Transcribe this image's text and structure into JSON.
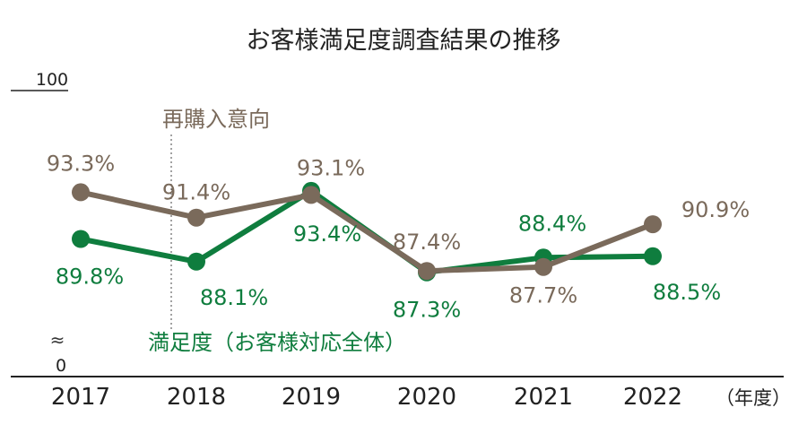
{
  "chart_data": {
    "type": "line",
    "title": "お客様満足度調査結果の推移",
    "y_top_label": "100",
    "y_bottom_label": "0",
    "axis_break_symbol": "≈",
    "ylim": [
      0,
      100
    ],
    "x_unit": "（年度）",
    "categories": [
      "2017",
      "2018",
      "2019",
      "2020",
      "2021",
      "2022"
    ],
    "divider_after_category": "2017",
    "series": [
      {
        "name": "再購入意向",
        "color": "#7a6a5b",
        "values": [
          93.3,
          91.4,
          93.1,
          87.4,
          87.7,
          90.9
        ],
        "labels": [
          "93.3%",
          "91.4%",
          "93.1%",
          "87.4%",
          "87.7%",
          "90.9%"
        ]
      },
      {
        "name": "満足度（お客様対応全体）",
        "color": "#0f7d3e",
        "values": [
          89.8,
          88.1,
          93.4,
          87.3,
          88.4,
          88.5
        ],
        "labels": [
          "89.8%",
          "88.1%",
          "93.4%",
          "87.3%",
          "88.4%",
          "88.5%"
        ]
      }
    ]
  }
}
